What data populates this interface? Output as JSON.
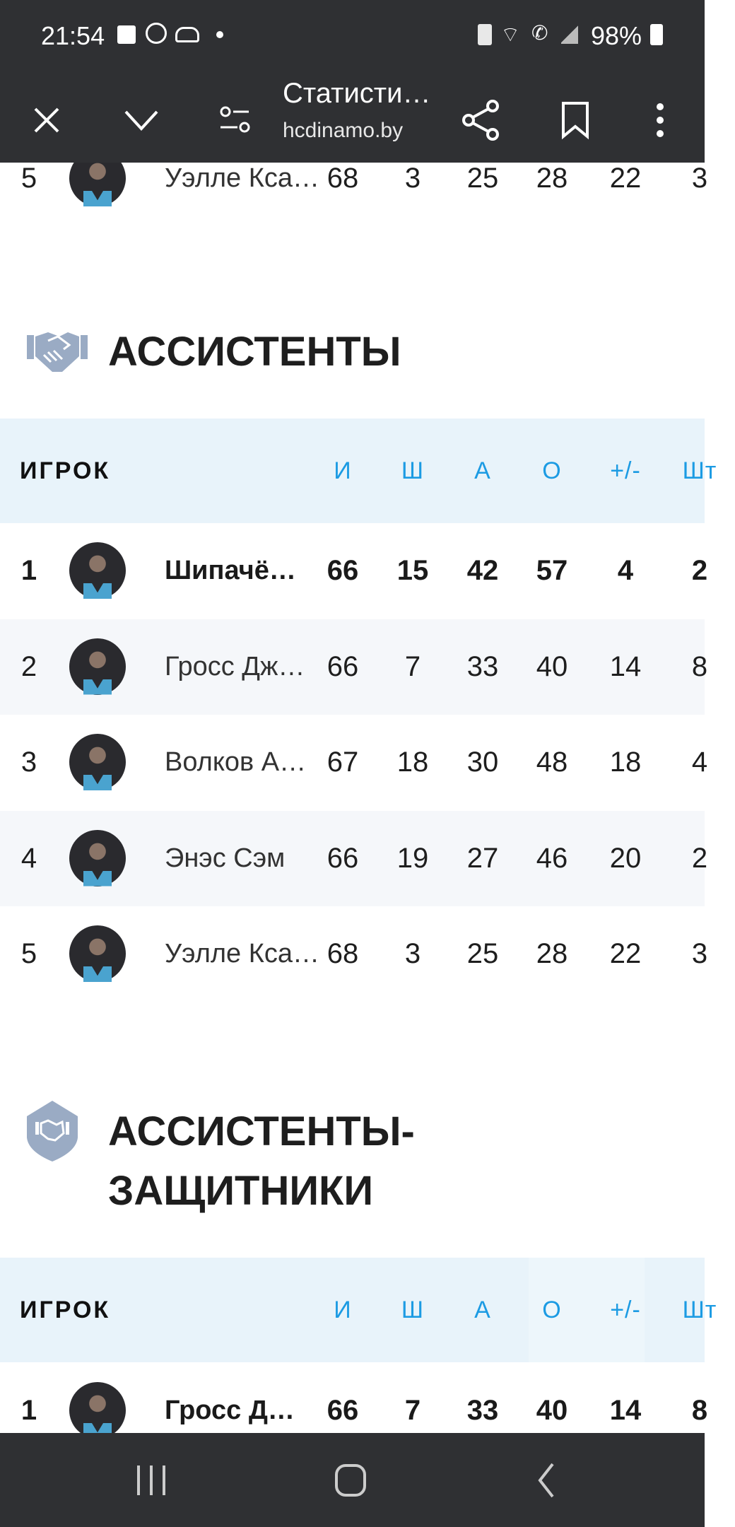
{
  "status_bar": {
    "time": "21:54",
    "battery": "98%",
    "left_icons": [
      "gallery-icon",
      "viber-icon",
      "cloud-icon",
      "dot-icon"
    ],
    "right_icons": [
      "battery-saver-icon",
      "wifi-icon",
      "wifi-call-icon",
      "signal-icon",
      "battery-icon"
    ]
  },
  "toolbar": {
    "title": "Статисти…",
    "domain": "hcdinamo.by"
  },
  "colors": {
    "bars": "#2f3033",
    "header_bg": "#e8f3fa",
    "header_accent": "#1c9be3",
    "alt_row": "#f5f7fa",
    "icon": "#9aabc4"
  },
  "top_partial_row": {
    "rank": "5",
    "name": "Уэлле Кса…",
    "stats": [
      "68",
      "3",
      "25",
      "28",
      "22",
      "3"
    ]
  },
  "sections": [
    {
      "title": "АССИСТЕНТЫ",
      "icon": "handshake-icon",
      "columns": [
        "ИГРОК",
        "И",
        "Ш",
        "А",
        "О",
        "+/-",
        "Шт"
      ],
      "rows": [
        {
          "rank": "1",
          "name": "Шипачё…",
          "stats": [
            "66",
            "15",
            "42",
            "57",
            "4",
            "2"
          ]
        },
        {
          "rank": "2",
          "name": "Гросс Дж…",
          "stats": [
            "66",
            "7",
            "33",
            "40",
            "14",
            "8"
          ]
        },
        {
          "rank": "3",
          "name": "Волков А…",
          "stats": [
            "67",
            "18",
            "30",
            "48",
            "18",
            "4"
          ]
        },
        {
          "rank": "4",
          "name": "Энэс Сэм",
          "stats": [
            "66",
            "19",
            "27",
            "46",
            "20",
            "2"
          ]
        },
        {
          "rank": "5",
          "name": "Уэлле Кса…",
          "stats": [
            "68",
            "3",
            "25",
            "28",
            "22",
            "3"
          ]
        }
      ]
    },
    {
      "title_line1": "АССИСТЕНТЫ-",
      "title_line2": "ЗАЩИТНИКИ",
      "icon": "shield-handshake-icon",
      "columns": [
        "ИГРОК",
        "И",
        "Ш",
        "А",
        "О",
        "+/-",
        "Шт"
      ],
      "rows": [
        {
          "rank": "1",
          "name": "Гросс Д…",
          "stats": [
            "66",
            "7",
            "33",
            "40",
            "14",
            "8"
          ]
        }
      ]
    }
  ]
}
